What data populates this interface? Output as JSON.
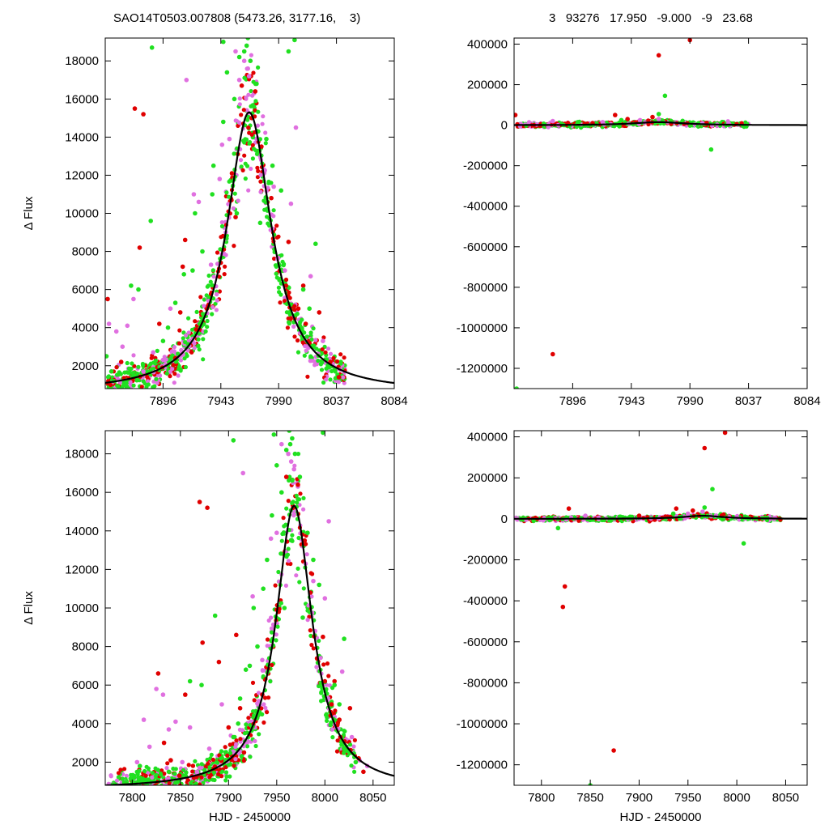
{
  "header": {
    "left_text": "SAO14T0503.007808 (5473.26, 3177.16,    3)",
    "right_text": "3   93276   17.950   -9.000   -9   23.68"
  },
  "colors": {
    "red": "#e00000",
    "violet": "#e070e0",
    "green": "#20e020",
    "model": "#000000"
  },
  "chart_data": [
    {
      "type": "scatter",
      "panel": "top-left",
      "xlabel": "",
      "ylabel": "Δ Flux",
      "xlim": [
        7849,
        8084
      ],
      "ylim": [
        800,
        19200
      ],
      "xticks": [
        7896,
        7943,
        7990,
        8037,
        8084
      ],
      "yticks": [
        2000,
        4000,
        6000,
        8000,
        10000,
        12000,
        14000,
        16000,
        18000
      ],
      "model": {
        "peak_x": 7966,
        "peak_y": 15300,
        "base": 600,
        "hwhm": 22
      },
      "points_red": [
        [
          7851,
          5500
        ],
        [
          7862,
          2200
        ],
        [
          7873,
          15500
        ],
        [
          7880,
          15200
        ],
        [
          7877,
          8200
        ],
        [
          7914,
          8600
        ],
        [
          7893,
          4200
        ],
        [
          7912,
          7200
        ],
        [
          7923,
          3900
        ],
        [
          7910,
          4800
        ],
        [
          7906,
          2400
        ],
        [
          7933,
          5200
        ],
        [
          7955,
          9800
        ],
        [
          7971,
          16400
        ],
        [
          7968,
          15000
        ],
        [
          7976,
          13500
        ],
        [
          7984,
          10800
        ],
        [
          7998,
          8500
        ],
        [
          7996,
          6200
        ],
        [
          8006,
          5000
        ],
        [
          8012,
          4200
        ],
        [
          8023,
          4800
        ],
        [
          8015,
          3200
        ],
        [
          8032,
          2200
        ],
        [
          8039,
          1400
        ],
        [
          8010,
          6200
        ],
        [
          7952,
          12100
        ],
        [
          7960,
          16700
        ]
      ],
      "points_violet": [
        [
          7852,
          4200
        ],
        [
          7858,
          3800
        ],
        [
          7863,
          3000
        ],
        [
          7867,
          4100
        ],
        [
          7872,
          5500
        ],
        [
          7880,
          1700
        ],
        [
          7888,
          2700
        ],
        [
          7902,
          5000
        ],
        [
          7915,
          17000
        ],
        [
          7925,
          10600
        ],
        [
          7935,
          7300
        ],
        [
          7944,
          13600
        ],
        [
          7950,
          13900
        ],
        [
          7955,
          18500
        ],
        [
          7962,
          18000
        ],
        [
          7965,
          17600
        ],
        [
          7966,
          17200
        ],
        [
          7970,
          16300
        ],
        [
          7978,
          12300
        ],
        [
          7986,
          11400
        ],
        [
          8000,
          10500
        ],
        [
          8004,
          14500
        ],
        [
          8016,
          6700
        ],
        [
          8026,
          3300
        ],
        [
          8034,
          2100
        ],
        [
          8040,
          1800
        ],
        [
          7921,
          11000
        ],
        [
          7942,
          11800
        ],
        [
          7958,
          17000
        ],
        [
          7947,
          9000
        ],
        [
          7995,
          7000
        ]
      ],
      "points_green": [
        [
          7850,
          2500
        ],
        [
          7854,
          1700
        ],
        [
          7856,
          1200
        ],
        [
          7870,
          6200
        ],
        [
          7876,
          6000
        ],
        [
          7886,
          9600
        ],
        [
          7887,
          18700
        ],
        [
          7896,
          3300
        ],
        [
          7906,
          5300
        ],
        [
          7913,
          6800
        ],
        [
          7920,
          7000
        ],
        [
          7922,
          10000
        ],
        [
          7936,
          11000
        ],
        [
          7945,
          14800
        ],
        [
          7948,
          17400
        ],
        [
          7954,
          16000
        ],
        [
          7958,
          18200
        ],
        [
          7962,
          18500
        ],
        [
          7964,
          18800
        ],
        [
          7967,
          18000
        ],
        [
          7972,
          16800
        ],
        [
          7980,
          13900
        ],
        [
          7985,
          12500
        ],
        [
          7992,
          11200
        ],
        [
          7998,
          18500
        ],
        [
          8003,
          19100
        ],
        [
          8015,
          5000
        ],
        [
          8020,
          8400
        ],
        [
          8030,
          2000
        ],
        [
          7945,
          19000
        ],
        [
          7956,
          10000
        ],
        [
          7937,
          12500
        ],
        [
          7928,
          8000
        ],
        [
          7975,
          9500
        ],
        [
          8010,
          6000
        ],
        [
          7900,
          4000
        ],
        [
          7965,
          19200
        ]
      ]
    },
    {
      "type": "scatter",
      "panel": "top-right",
      "xlabel": "",
      "ylabel": "",
      "xlim": [
        7849,
        8084
      ],
      "ylim": [
        -1300000,
        430000
      ],
      "xticks": [
        7896,
        7943,
        7990,
        8037,
        8084
      ],
      "yticks": [
        400000,
        200000,
        0,
        -200000,
        -400000,
        -600000,
        -800000,
        -1000000,
        -1200000
      ],
      "points_red": [
        [
          7850,
          50000
        ],
        [
          7880,
          -1130000
        ],
        [
          7930,
          50000
        ],
        [
          7912,
          10000
        ],
        [
          7965,
          345000
        ],
        [
          7990,
          420000
        ],
        [
          7940,
          30000
        ],
        [
          7960,
          40000
        ]
      ],
      "points_violet": [
        [
          7880,
          20000
        ],
        [
          7920,
          15000
        ],
        [
          7965,
          30000
        ],
        [
          8000,
          10000
        ],
        [
          7950,
          25000
        ]
      ],
      "points_green": [
        [
          7851,
          -1300000
        ],
        [
          8007,
          -120000
        ],
        [
          7970,
          145000
        ],
        [
          7965,
          55000
        ],
        [
          7935,
          25000
        ],
        [
          7900,
          15000
        ]
      ]
    },
    {
      "type": "scatter",
      "panel": "bottom-left",
      "xlabel": "HJD - 2450000",
      "ylabel": "Δ Flux",
      "xlim": [
        7772,
        8072
      ],
      "ylim": [
        800,
        19200
      ],
      "xticks": [
        7800,
        7850,
        7900,
        7950,
        8000,
        8050
      ],
      "yticks": [
        2000,
        4000,
        6000,
        8000,
        10000,
        12000,
        14000,
        16000,
        18000
      ],
      "model": {
        "peak_x": 7968,
        "peak_y": 15300,
        "base": 600,
        "hwhm": 23
      },
      "points_red": [
        [
          7827,
          6600
        ],
        [
          7833,
          3000
        ],
        [
          7840,
          2100
        ],
        [
          7849,
          1300
        ],
        [
          7855,
          5500
        ],
        [
          7870,
          15500
        ],
        [
          7878,
          15200
        ],
        [
          7873,
          8200
        ],
        [
          7890,
          7200
        ],
        [
          7900,
          3800
        ],
        [
          7912,
          4800
        ],
        [
          7908,
          8600
        ],
        [
          7916,
          2500
        ],
        [
          7935,
          5500
        ],
        [
          7952,
          9800
        ],
        [
          7972,
          16400
        ],
        [
          7967,
          15200
        ],
        [
          7979,
          13500
        ],
        [
          7985,
          10800
        ],
        [
          7998,
          8500
        ],
        [
          8000,
          6200
        ],
        [
          8007,
          5000
        ],
        [
          8015,
          4200
        ],
        [
          8026,
          4800
        ],
        [
          8016,
          3300
        ],
        [
          8035,
          2200
        ],
        [
          8040,
          1500
        ],
        [
          7960,
          16800
        ],
        [
          8010,
          6200
        ]
      ],
      "points_violet": [
        [
          7805,
          2000
        ],
        [
          7812,
          4200
        ],
        [
          7818,
          2800
        ],
        [
          7825,
          5800
        ],
        [
          7832,
          5500
        ],
        [
          7838,
          3700
        ],
        [
          7845,
          4100
        ],
        [
          7852,
          2000
        ],
        [
          7860,
          3800
        ],
        [
          7870,
          1700
        ],
        [
          7880,
          2700
        ],
        [
          7893,
          5000
        ],
        [
          7915,
          17000
        ],
        [
          7925,
          10600
        ],
        [
          7935,
          7300
        ],
        [
          7944,
          13600
        ],
        [
          7950,
          13900
        ],
        [
          7955,
          18500
        ],
        [
          7962,
          18000
        ],
        [
          7965,
          17600
        ],
        [
          7968,
          17200
        ],
        [
          7972,
          16300
        ],
        [
          7980,
          12300
        ],
        [
          7988,
          11400
        ],
        [
          8000,
          10500
        ],
        [
          8004,
          14500
        ],
        [
          8018,
          6700
        ],
        [
          8028,
          3300
        ],
        [
          8036,
          2100
        ],
        [
          8044,
          1800
        ]
      ],
      "points_green": [
        [
          7802,
          1200
        ],
        [
          7808,
          1800
        ],
        [
          7815,
          1000
        ],
        [
          7838,
          1500
        ],
        [
          7860,
          6200
        ],
        [
          7872,
          6000
        ],
        [
          7886,
          9600
        ],
        [
          7905,
          18700
        ],
        [
          7905,
          3300
        ],
        [
          7912,
          5300
        ],
        [
          7918,
          6800
        ],
        [
          7922,
          7000
        ],
        [
          7926,
          10000
        ],
        [
          7936,
          11000
        ],
        [
          7945,
          14800
        ],
        [
          7950,
          17400
        ],
        [
          7955,
          16000
        ],
        [
          7960,
          18200
        ],
        [
          7964,
          18500
        ],
        [
          7966,
          18800
        ],
        [
          7969,
          18000
        ],
        [
          7974,
          16800
        ],
        [
          7982,
          13900
        ],
        [
          7988,
          12500
        ],
        [
          7994,
          11200
        ],
        [
          7998,
          19100
        ],
        [
          8015,
          5000
        ],
        [
          8020,
          8400
        ],
        [
          8032,
          2000
        ],
        [
          7947,
          19000
        ],
        [
          7958,
          10000
        ],
        [
          7940,
          12500
        ],
        [
          7930,
          8000
        ],
        [
          7977,
          9500
        ],
        [
          8010,
          6000
        ],
        [
          7910,
          4000
        ],
        [
          7963,
          19200
        ]
      ]
    },
    {
      "type": "scatter",
      "panel": "bottom-right",
      "xlabel": "HJD - 2450000",
      "ylabel": "",
      "xlim": [
        7772,
        8072
      ],
      "ylim": [
        -1300000,
        430000
      ],
      "xticks": [
        7800,
        7850,
        7900,
        7950,
        8000,
        8050
      ],
      "yticks": [
        400000,
        200000,
        0,
        -200000,
        -400000,
        -600000,
        -800000,
        -1000000,
        -1200000
      ],
      "points_red": [
        [
          7824,
          -330000
        ],
        [
          7822,
          -430000
        ],
        [
          7828,
          50000
        ],
        [
          7874,
          -1130000
        ],
        [
          7938,
          50000
        ],
        [
          7967,
          345000
        ],
        [
          7988,
          420000
        ],
        [
          7955,
          40000
        ],
        [
          7900,
          15000
        ]
      ],
      "points_violet": [
        [
          7845,
          15000
        ],
        [
          7900,
          10000
        ],
        [
          7950,
          25000
        ],
        [
          7965,
          35000
        ],
        [
          8000,
          10000
        ]
      ],
      "points_green": [
        [
          7850,
          -1300000
        ],
        [
          7817,
          -45000
        ],
        [
          7792,
          -10000
        ],
        [
          8007,
          -120000
        ],
        [
          7975,
          145000
        ],
        [
          7967,
          55000
        ],
        [
          7935,
          25000
        ],
        [
          7880,
          10000
        ]
      ]
    }
  ]
}
